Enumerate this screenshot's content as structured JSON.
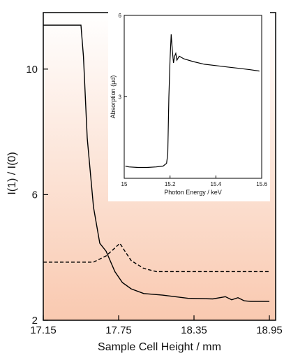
{
  "chart_data": [
    {
      "type": "line",
      "xlabel": "Sample Cell Height / mm",
      "ylabel": "I(1) / I(0)",
      "xlim": [
        17.15,
        19.0
      ],
      "ylim": [
        2,
        11.8
      ],
      "xticks": [
        "17.15",
        "17.75",
        "18.35",
        "18.95"
      ],
      "yticks": [
        "2",
        "6",
        "10"
      ],
      "background_gradient": [
        "#ffffff",
        "#f9c9b0"
      ],
      "series": [
        {
          "style": "solid",
          "x": [
            17.15,
            17.45,
            17.47,
            17.5,
            17.55,
            17.6,
            17.65,
            17.72,
            17.78,
            17.85,
            17.95,
            18.1,
            18.3,
            18.5,
            18.6,
            18.65,
            18.7,
            18.75,
            18.8,
            18.95
          ],
          "y": [
            11.4,
            11.4,
            10.4,
            7.8,
            5.6,
            4.45,
            4.2,
            3.55,
            3.2,
            3.0,
            2.85,
            2.8,
            2.7,
            2.68,
            2.75,
            2.65,
            2.72,
            2.62,
            2.6,
            2.6
          ]
        },
        {
          "style": "dashed",
          "x": [
            17.15,
            17.55,
            17.65,
            17.72,
            17.76,
            17.8,
            17.85,
            17.95,
            18.05,
            18.2,
            18.5,
            18.95
          ],
          "y": [
            3.85,
            3.85,
            4.05,
            4.3,
            4.45,
            4.2,
            3.9,
            3.65,
            3.55,
            3.55,
            3.55,
            3.55
          ]
        }
      ]
    },
    {
      "type": "line",
      "xlabel": "Photon Energy / keV",
      "ylabel": "Absorption (μd)",
      "xlim": [
        15.0,
        15.6
      ],
      "ylim": [
        0,
        6
      ],
      "xticks": [
        "15",
        "15.2",
        "15.4",
        "15.6"
      ],
      "yticks": [
        "3",
        "6"
      ],
      "series": [
        {
          "style": "solid",
          "x": [
            15.005,
            15.02,
            15.06,
            15.1,
            15.14,
            15.17,
            15.185,
            15.19,
            15.195,
            15.2,
            15.205,
            15.21,
            15.215,
            15.22,
            15.225,
            15.23,
            15.24,
            15.26,
            15.3,
            15.35,
            15.4,
            15.45,
            15.5,
            15.55,
            15.59
          ],
          "y": [
            0.45,
            0.42,
            0.4,
            0.4,
            0.42,
            0.45,
            0.55,
            0.9,
            3.0,
            4.4,
            5.3,
            4.7,
            4.25,
            4.5,
            4.6,
            4.35,
            4.5,
            4.4,
            4.3,
            4.2,
            4.15,
            4.1,
            4.05,
            4.0,
            3.95
          ]
        }
      ]
    }
  ]
}
